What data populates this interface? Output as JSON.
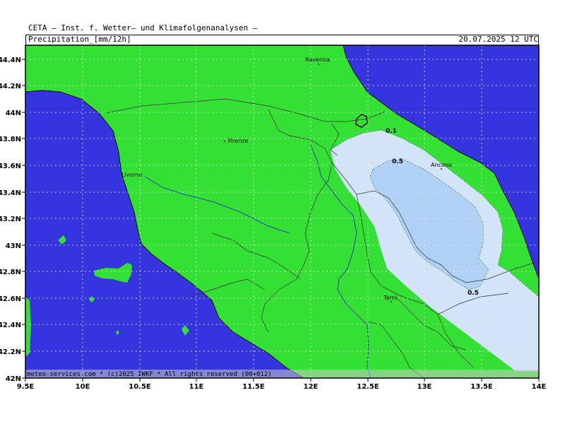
{
  "header": {
    "institute": "CETA — Inst. f. Wetter— und Klimafolgenanalysen —",
    "title": "Precipitation_[mm/12h]",
    "datetime": "20.07.2025 12 UTC"
  },
  "credit": "meteo-services.com * (c)2025 IWKF * All rights reserved (00+012)",
  "axes": {
    "lon_ticks": [
      "9.5E",
      "10E",
      "10.5E",
      "11E",
      "11.5E",
      "12E",
      "12.5E",
      "13E",
      "13.5E",
      "14E"
    ],
    "lat_ticks": [
      "44.4N",
      "44.2N",
      "44N",
      "43.8N",
      "43.6N",
      "43.4N",
      "43.2N",
      "43N",
      "42.8N",
      "42.6N",
      "42.4N",
      "42.2N",
      "42N"
    ]
  },
  "cities": [
    {
      "name": "Ravenna"
    },
    {
      "name": "Firenze"
    },
    {
      "name": "Livorno"
    },
    {
      "name": "Ancona"
    },
    {
      "name": "Terni"
    }
  ],
  "contours": {
    "label_a": "0.1",
    "label_b": "0.5",
    "label_c": "0.5"
  },
  "colors": {
    "sea": "#3535e0",
    "land": "#33e033",
    "precip_light": "#d4e4f8",
    "precip_mid": "#b0d0f6",
    "river": "#2020d0"
  }
}
